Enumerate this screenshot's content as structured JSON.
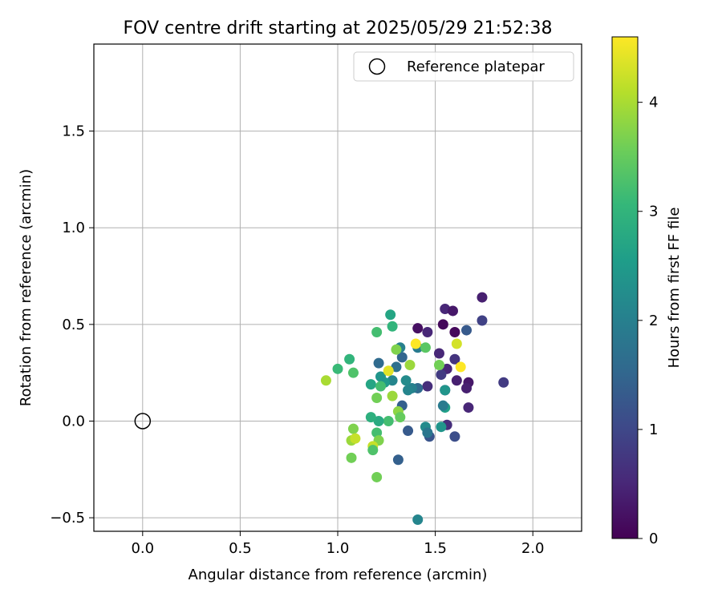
{
  "chart_data": {
    "type": "scatter",
    "title": "FOV centre drift starting at 2025/05/29 21:52:38",
    "xlabel": "Angular distance from reference (arcmin)",
    "ylabel": "Rotation from reference (arcmin)",
    "xlim": [
      -0.25,
      2.25
    ],
    "ylim": [
      -0.57,
      1.95
    ],
    "xticks": [
      0.0,
      0.5,
      1.0,
      1.5,
      2.0
    ],
    "xtick_labels": [
      "0.0",
      "0.5",
      "1.0",
      "1.5",
      "2.0"
    ],
    "yticks": [
      -0.5,
      0.0,
      0.5,
      1.0,
      1.5
    ],
    "ytick_labels": [
      "−0.5",
      "0.0",
      "0.5",
      "1.0",
      "1.5"
    ],
    "grid": true,
    "legend": {
      "placement": "top-right",
      "entries": [
        "Reference platepar"
      ]
    },
    "reference": {
      "name": "Reference platepar",
      "x": 0.0,
      "y": 0.0,
      "marker": "open-circle"
    },
    "colorbar": {
      "label": "Hours from first FF file",
      "colormap": "viridis",
      "range": [
        0,
        4.6
      ],
      "ticks": [
        0,
        1,
        2,
        3,
        4
      ],
      "tick_labels": [
        "0",
        "1",
        "2",
        "3",
        "4"
      ]
    },
    "colormap_stops": [
      "#440154",
      "#482878",
      "#3e4989",
      "#31688e",
      "#26828e",
      "#1f9e89",
      "#35b779",
      "#6ece58",
      "#b5de2b",
      "#fde725"
    ],
    "points": [
      {
        "x": 1.74,
        "y": 0.64,
        "h": 0.4
      },
      {
        "x": 1.55,
        "y": 0.58,
        "h": 0.5
      },
      {
        "x": 1.59,
        "y": 0.57,
        "h": 0.3
      },
      {
        "x": 1.74,
        "y": 0.52,
        "h": 0.9
      },
      {
        "x": 1.54,
        "y": 0.5,
        "h": 0.1
      },
      {
        "x": 1.41,
        "y": 0.48,
        "h": 0.2
      },
      {
        "x": 1.46,
        "y": 0.46,
        "h": 0.5
      },
      {
        "x": 1.6,
        "y": 0.46,
        "h": 0.1
      },
      {
        "x": 1.66,
        "y": 0.47,
        "h": 1.3
      },
      {
        "x": 1.52,
        "y": 0.35,
        "h": 0.5
      },
      {
        "x": 1.6,
        "y": 0.32,
        "h": 0.7
      },
      {
        "x": 1.56,
        "y": 0.27,
        "h": 0.5
      },
      {
        "x": 1.53,
        "y": 0.24,
        "h": 0.8
      },
      {
        "x": 1.61,
        "y": 0.21,
        "h": 0.4
      },
      {
        "x": 1.67,
        "y": 0.2,
        "h": 0.3
      },
      {
        "x": 1.66,
        "y": 0.17,
        "h": 0.4
      },
      {
        "x": 1.85,
        "y": 0.2,
        "h": 0.8
      },
      {
        "x": 1.67,
        "y": 0.07,
        "h": 0.5
      },
      {
        "x": 1.56,
        "y": -0.02,
        "h": 0.6
      },
      {
        "x": 1.6,
        "y": -0.08,
        "h": 1.1
      },
      {
        "x": 1.47,
        "y": -0.08,
        "h": 1.2
      },
      {
        "x": 1.46,
        "y": 0.18,
        "h": 0.6
      },
      {
        "x": 1.55,
        "y": 0.16,
        "h": 0.8
      },
      {
        "x": 1.41,
        "y": 0.38,
        "h": 1.9
      },
      {
        "x": 1.41,
        "y": 0.17,
        "h": 1.6
      },
      {
        "x": 1.38,
        "y": 0.17,
        "h": 2.0
      },
      {
        "x": 1.36,
        "y": 0.16,
        "h": 2.1
      },
      {
        "x": 1.35,
        "y": 0.21,
        "h": 2.2
      },
      {
        "x": 1.33,
        "y": 0.33,
        "h": 1.5
      },
      {
        "x": 1.32,
        "y": 0.38,
        "h": 2.0
      },
      {
        "x": 1.21,
        "y": 0.3,
        "h": 1.6
      },
      {
        "x": 1.3,
        "y": 0.28,
        "h": 1.7
      },
      {
        "x": 1.28,
        "y": 0.21,
        "h": 2.1
      },
      {
        "x": 1.33,
        "y": 0.08,
        "h": 1.4
      },
      {
        "x": 1.24,
        "y": 0.2,
        "h": 2.5
      },
      {
        "x": 1.27,
        "y": 0.55,
        "h": 2.7
      },
      {
        "x": 1.28,
        "y": 0.49,
        "h": 3.0
      },
      {
        "x": 1.2,
        "y": 0.46,
        "h": 3.2
      },
      {
        "x": 1.3,
        "y": 0.37,
        "h": 3.7
      },
      {
        "x": 1.37,
        "y": 0.29,
        "h": 3.9
      },
      {
        "x": 1.22,
        "y": 0.23,
        "h": 2.4
      },
      {
        "x": 1.17,
        "y": 0.19,
        "h": 2.7
      },
      {
        "x": 1.06,
        "y": 0.32,
        "h": 3.0
      },
      {
        "x": 1.0,
        "y": 0.27,
        "h": 3.1
      },
      {
        "x": 1.08,
        "y": 0.25,
        "h": 3.3
      },
      {
        "x": 0.94,
        "y": 0.21,
        "h": 4.0
      },
      {
        "x": 1.26,
        "y": 0.26,
        "h": 4.4
      },
      {
        "x": 1.22,
        "y": 0.18,
        "h": 3.2
      },
      {
        "x": 1.28,
        "y": 0.13,
        "h": 3.9
      },
      {
        "x": 1.2,
        "y": 0.12,
        "h": 3.6
      },
      {
        "x": 1.31,
        "y": 0.05,
        "h": 3.8
      },
      {
        "x": 1.32,
        "y": 0.02,
        "h": 3.5
      },
      {
        "x": 1.26,
        "y": 0.0,
        "h": 3.2
      },
      {
        "x": 1.21,
        "y": 0.0,
        "h": 2.8
      },
      {
        "x": 1.17,
        "y": 0.02,
        "h": 2.9
      },
      {
        "x": 1.45,
        "y": 0.38,
        "h": 3.4
      },
      {
        "x": 1.52,
        "y": 0.29,
        "h": 3.6
      },
      {
        "x": 1.55,
        "y": 0.16,
        "h": 2.4
      },
      {
        "x": 1.55,
        "y": 0.07,
        "h": 2.6
      },
      {
        "x": 1.54,
        "y": 0.08,
        "h": 1.9
      },
      {
        "x": 1.53,
        "y": -0.03,
        "h": 2.4
      },
      {
        "x": 1.45,
        "y": -0.03,
        "h": 2.2
      },
      {
        "x": 1.46,
        "y": -0.06,
        "h": 1.8
      },
      {
        "x": 1.36,
        "y": -0.05,
        "h": 1.3
      },
      {
        "x": 1.31,
        "y": -0.2,
        "h": 1.4
      },
      {
        "x": 1.41,
        "y": -0.51,
        "h": 2.1
      },
      {
        "x": 1.4,
        "y": 0.4,
        "h": 4.6
      },
      {
        "x": 1.61,
        "y": 0.4,
        "h": 4.3
      },
      {
        "x": 1.63,
        "y": 0.28,
        "h": 4.6
      },
      {
        "x": 1.08,
        "y": -0.04,
        "h": 3.7
      },
      {
        "x": 1.07,
        "y": -0.1,
        "h": 3.9
      },
      {
        "x": 1.09,
        "y": -0.09,
        "h": 4.2
      },
      {
        "x": 1.07,
        "y": -0.19,
        "h": 3.6
      },
      {
        "x": 1.2,
        "y": -0.06,
        "h": 3.2
      },
      {
        "x": 1.21,
        "y": -0.1,
        "h": 3.7
      },
      {
        "x": 1.18,
        "y": -0.13,
        "h": 4.2
      },
      {
        "x": 1.18,
        "y": -0.15,
        "h": 3.3
      },
      {
        "x": 1.2,
        "y": -0.29,
        "h": 3.6
      }
    ]
  }
}
